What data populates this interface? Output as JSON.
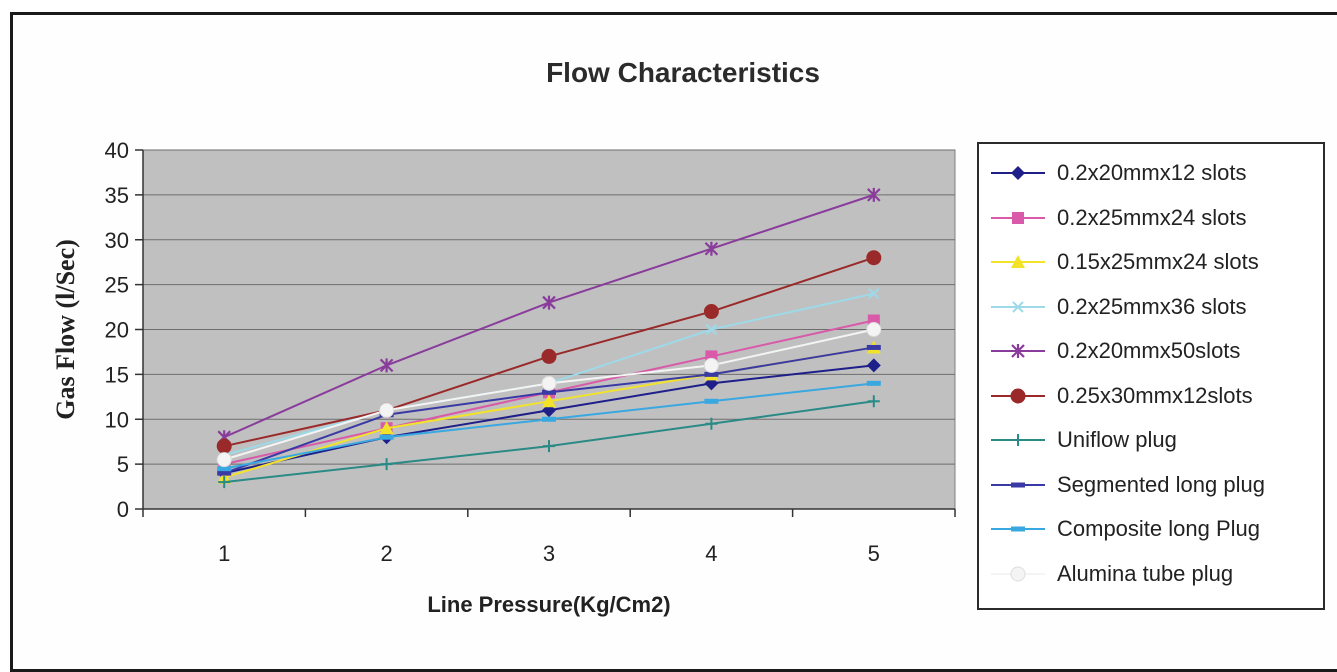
{
  "chart_data": {
    "type": "line",
    "title": "Flow Characteristics",
    "xlabel": "Line Pressure(Kg/Cm2)",
    "ylabel": "Gas Flow (l/Sec)",
    "x": [
      1,
      2,
      3,
      4,
      5
    ],
    "xticks": [
      "1",
      "2",
      "3",
      "4",
      "5"
    ],
    "ylim": [
      0,
      40
    ],
    "yticks": [
      "0",
      "5",
      "10",
      "15",
      "20",
      "25",
      "30",
      "35",
      "40"
    ],
    "grid": true,
    "legend_position": "right",
    "plot_background": "#c0c0c0",
    "series": [
      {
        "name": "0.2x20mmx12 slots",
        "values": [
          4,
          8,
          11,
          14,
          16
        ],
        "color": "#1f1f8a",
        "marker": "diamond"
      },
      {
        "name": "0.2x25mmx24 slots",
        "values": [
          5,
          9,
          13,
          17,
          21
        ],
        "color": "#d85aa8",
        "marker": "square"
      },
      {
        "name": "0.15x25mmx24 slots",
        "values": [
          3.5,
          9,
          12,
          15,
          18
        ],
        "color": "#f2e32a",
        "marker": "triangle"
      },
      {
        "name": "0.2x25mmx36 slots",
        "values": [
          6,
          11,
          14,
          20,
          24
        ],
        "color": "#9ed9e8",
        "marker": "x"
      },
      {
        "name": "0.2x20mmx50slots",
        "values": [
          8,
          16,
          23,
          29,
          35
        ],
        "color": "#8a3c9c",
        "marker": "star"
      },
      {
        "name": "0.25x30mmx12slots",
        "values": [
          7,
          11,
          17,
          22,
          28
        ],
        "color": "#9a2a2a",
        "marker": "circle"
      },
      {
        "name": "Uniflow plug",
        "values": [
          3,
          5,
          7,
          9.5,
          12
        ],
        "color": "#2a8a86",
        "marker": "plus"
      },
      {
        "name": "Segmented long plug",
        "values": [
          4,
          10.5,
          13,
          15,
          18
        ],
        "color": "#3a3aa6",
        "marker": "dash"
      },
      {
        "name": "Composite long Plug",
        "values": [
          4.5,
          8,
          10,
          12,
          14
        ],
        "color": "#3aa8e0",
        "marker": "dash"
      },
      {
        "name": "Alumina tube plug",
        "values": [
          5.5,
          11,
          14,
          16,
          20
        ],
        "color": "#f4f4f4",
        "marker": "circle"
      }
    ]
  }
}
